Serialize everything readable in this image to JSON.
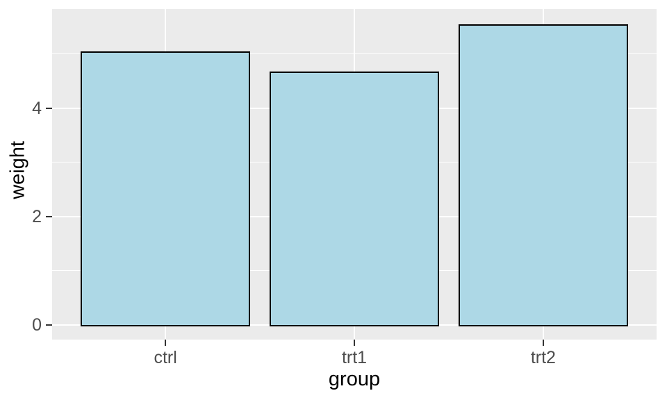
{
  "chart_data": {
    "type": "bar",
    "categories": [
      "ctrl",
      "trt1",
      "trt2"
    ],
    "values": [
      5.03,
      4.66,
      5.53
    ],
    "title": "",
    "xlabel": "group",
    "ylabel": "weight",
    "ylim": [
      -0.27,
      5.83
    ],
    "yticks": [
      0,
      2,
      4
    ],
    "ytick_labels": [
      "0",
      "2",
      "4"
    ],
    "yticks_minor": [
      1,
      3,
      5
    ],
    "bar_rel_width": 0.9,
    "x_expand": 0.6,
    "grid": "on",
    "legend": "none",
    "colors": {
      "bar_fill": "#ADD8E6",
      "bar_stroke": "#000000",
      "panel_bg": "#EBEBEB",
      "gridline": "#FFFFFF",
      "axis_text": "#4D4D4D",
      "axis_title": "#000000",
      "tick_mark": "#333333",
      "background": "#FFFFFF"
    }
  }
}
